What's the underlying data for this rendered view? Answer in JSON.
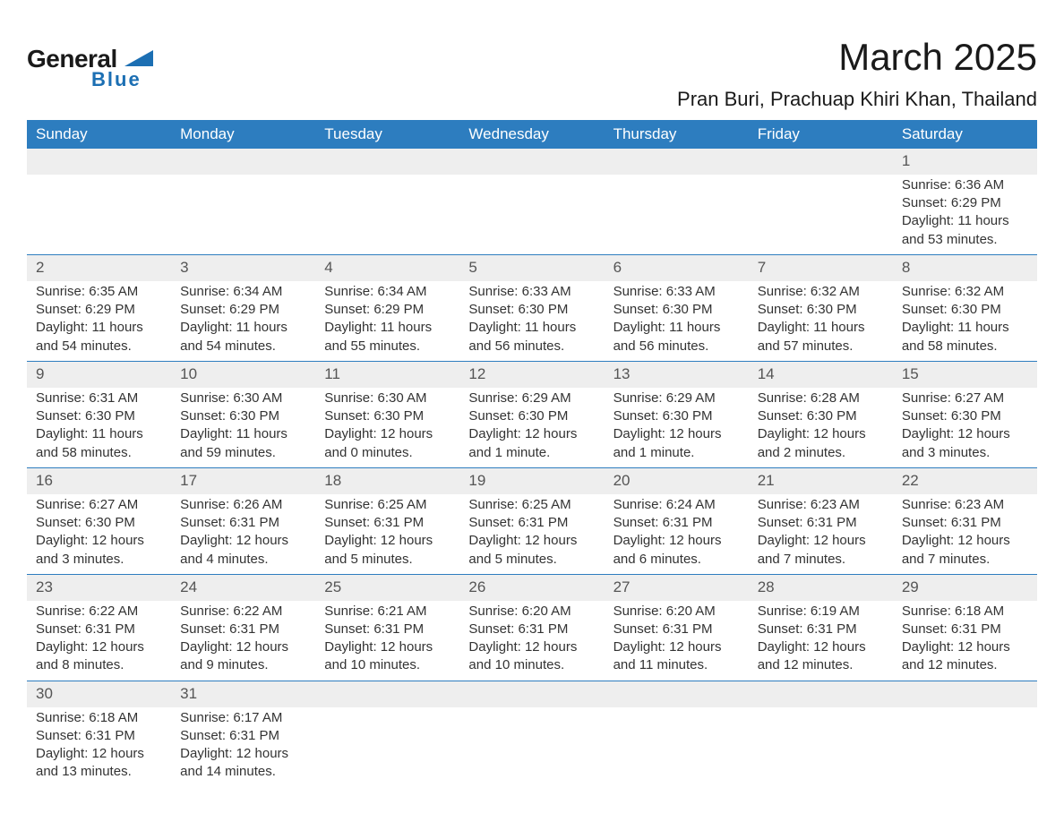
{
  "logo": {
    "general": "General",
    "blue": "Blue"
  },
  "title": "March 2025",
  "location": "Pran Buri, Prachuap Khiri Khan, Thailand",
  "day_headers": [
    "Sunday",
    "Monday",
    "Tuesday",
    "Wednesday",
    "Thursday",
    "Friday",
    "Saturday"
  ],
  "colors": {
    "header_bg": "#2d7dbf",
    "header_text": "#ffffff",
    "daynum_bg": "#eeeeee",
    "row_border": "#2d7dbf",
    "logo_blue": "#1c6fb3",
    "body_text": "#333333"
  },
  "weeks": [
    [
      null,
      null,
      null,
      null,
      null,
      null,
      {
        "n": "1",
        "sunrise": "Sunrise: 6:36 AM",
        "sunset": "Sunset: 6:29 PM",
        "daylight": "Daylight: 11 hours and 53 minutes."
      }
    ],
    [
      {
        "n": "2",
        "sunrise": "Sunrise: 6:35 AM",
        "sunset": "Sunset: 6:29 PM",
        "daylight": "Daylight: 11 hours and 54 minutes."
      },
      {
        "n": "3",
        "sunrise": "Sunrise: 6:34 AM",
        "sunset": "Sunset: 6:29 PM",
        "daylight": "Daylight: 11 hours and 54 minutes."
      },
      {
        "n": "4",
        "sunrise": "Sunrise: 6:34 AM",
        "sunset": "Sunset: 6:29 PM",
        "daylight": "Daylight: 11 hours and 55 minutes."
      },
      {
        "n": "5",
        "sunrise": "Sunrise: 6:33 AM",
        "sunset": "Sunset: 6:30 PM",
        "daylight": "Daylight: 11 hours and 56 minutes."
      },
      {
        "n": "6",
        "sunrise": "Sunrise: 6:33 AM",
        "sunset": "Sunset: 6:30 PM",
        "daylight": "Daylight: 11 hours and 56 minutes."
      },
      {
        "n": "7",
        "sunrise": "Sunrise: 6:32 AM",
        "sunset": "Sunset: 6:30 PM",
        "daylight": "Daylight: 11 hours and 57 minutes."
      },
      {
        "n": "8",
        "sunrise": "Sunrise: 6:32 AM",
        "sunset": "Sunset: 6:30 PM",
        "daylight": "Daylight: 11 hours and 58 minutes."
      }
    ],
    [
      {
        "n": "9",
        "sunrise": "Sunrise: 6:31 AM",
        "sunset": "Sunset: 6:30 PM",
        "daylight": "Daylight: 11 hours and 58 minutes."
      },
      {
        "n": "10",
        "sunrise": "Sunrise: 6:30 AM",
        "sunset": "Sunset: 6:30 PM",
        "daylight": "Daylight: 11 hours and 59 minutes."
      },
      {
        "n": "11",
        "sunrise": "Sunrise: 6:30 AM",
        "sunset": "Sunset: 6:30 PM",
        "daylight": "Daylight: 12 hours and 0 minutes."
      },
      {
        "n": "12",
        "sunrise": "Sunrise: 6:29 AM",
        "sunset": "Sunset: 6:30 PM",
        "daylight": "Daylight: 12 hours and 1 minute."
      },
      {
        "n": "13",
        "sunrise": "Sunrise: 6:29 AM",
        "sunset": "Sunset: 6:30 PM",
        "daylight": "Daylight: 12 hours and 1 minute."
      },
      {
        "n": "14",
        "sunrise": "Sunrise: 6:28 AM",
        "sunset": "Sunset: 6:30 PM",
        "daylight": "Daylight: 12 hours and 2 minutes."
      },
      {
        "n": "15",
        "sunrise": "Sunrise: 6:27 AM",
        "sunset": "Sunset: 6:30 PM",
        "daylight": "Daylight: 12 hours and 3 minutes."
      }
    ],
    [
      {
        "n": "16",
        "sunrise": "Sunrise: 6:27 AM",
        "sunset": "Sunset: 6:30 PM",
        "daylight": "Daylight: 12 hours and 3 minutes."
      },
      {
        "n": "17",
        "sunrise": "Sunrise: 6:26 AM",
        "sunset": "Sunset: 6:31 PM",
        "daylight": "Daylight: 12 hours and 4 minutes."
      },
      {
        "n": "18",
        "sunrise": "Sunrise: 6:25 AM",
        "sunset": "Sunset: 6:31 PM",
        "daylight": "Daylight: 12 hours and 5 minutes."
      },
      {
        "n": "19",
        "sunrise": "Sunrise: 6:25 AM",
        "sunset": "Sunset: 6:31 PM",
        "daylight": "Daylight: 12 hours and 5 minutes."
      },
      {
        "n": "20",
        "sunrise": "Sunrise: 6:24 AM",
        "sunset": "Sunset: 6:31 PM",
        "daylight": "Daylight: 12 hours and 6 minutes."
      },
      {
        "n": "21",
        "sunrise": "Sunrise: 6:23 AM",
        "sunset": "Sunset: 6:31 PM",
        "daylight": "Daylight: 12 hours and 7 minutes."
      },
      {
        "n": "22",
        "sunrise": "Sunrise: 6:23 AM",
        "sunset": "Sunset: 6:31 PM",
        "daylight": "Daylight: 12 hours and 7 minutes."
      }
    ],
    [
      {
        "n": "23",
        "sunrise": "Sunrise: 6:22 AM",
        "sunset": "Sunset: 6:31 PM",
        "daylight": "Daylight: 12 hours and 8 minutes."
      },
      {
        "n": "24",
        "sunrise": "Sunrise: 6:22 AM",
        "sunset": "Sunset: 6:31 PM",
        "daylight": "Daylight: 12 hours and 9 minutes."
      },
      {
        "n": "25",
        "sunrise": "Sunrise: 6:21 AM",
        "sunset": "Sunset: 6:31 PM",
        "daylight": "Daylight: 12 hours and 10 minutes."
      },
      {
        "n": "26",
        "sunrise": "Sunrise: 6:20 AM",
        "sunset": "Sunset: 6:31 PM",
        "daylight": "Daylight: 12 hours and 10 minutes."
      },
      {
        "n": "27",
        "sunrise": "Sunrise: 6:20 AM",
        "sunset": "Sunset: 6:31 PM",
        "daylight": "Daylight: 12 hours and 11 minutes."
      },
      {
        "n": "28",
        "sunrise": "Sunrise: 6:19 AM",
        "sunset": "Sunset: 6:31 PM",
        "daylight": "Daylight: 12 hours and 12 minutes."
      },
      {
        "n": "29",
        "sunrise": "Sunrise: 6:18 AM",
        "sunset": "Sunset: 6:31 PM",
        "daylight": "Daylight: 12 hours and 12 minutes."
      }
    ],
    [
      {
        "n": "30",
        "sunrise": "Sunrise: 6:18 AM",
        "sunset": "Sunset: 6:31 PM",
        "daylight": "Daylight: 12 hours and 13 minutes."
      },
      {
        "n": "31",
        "sunrise": "Sunrise: 6:17 AM",
        "sunset": "Sunset: 6:31 PM",
        "daylight": "Daylight: 12 hours and 14 minutes."
      },
      null,
      null,
      null,
      null,
      null
    ]
  ]
}
